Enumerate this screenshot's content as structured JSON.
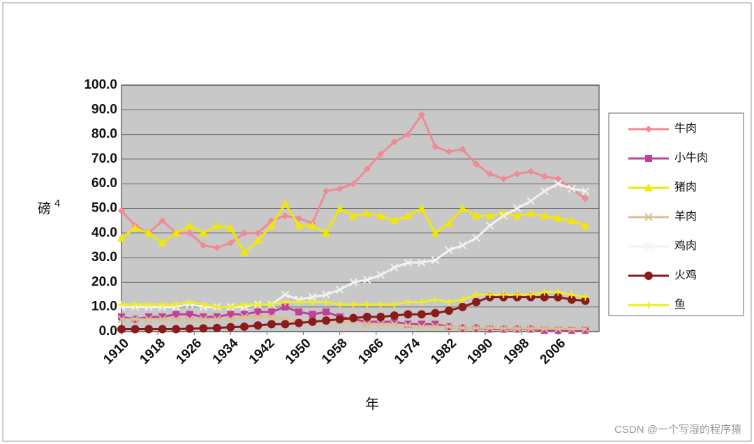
{
  "chart_data": {
    "type": "line",
    "ylabel": "磅",
    "ylabel_sup": "4",
    "xlabel": "年",
    "watermark": "CSDN @一个写湿的程序猿",
    "x": [
      1910,
      1913,
      1916,
      1919,
      1922,
      1925,
      1928,
      1931,
      1934,
      1937,
      1940,
      1943,
      1946,
      1949,
      1952,
      1955,
      1958,
      1961,
      1964,
      1967,
      1970,
      1973,
      1976,
      1979,
      1982,
      1985,
      1988,
      1991,
      1994,
      1997,
      2000,
      2003,
      2006,
      2009,
      2012
    ],
    "xlim": [
      1910,
      2015
    ],
    "xticks": [
      1910,
      1918,
      1926,
      1934,
      1942,
      1950,
      1958,
      1966,
      1974,
      1982,
      1990,
      1998,
      2006
    ],
    "ylim": [
      0,
      100
    ],
    "yticks": [
      {
        "value": 0,
        "label": "0.0"
      },
      {
        "value": 10,
        "label": "10.0"
      },
      {
        "value": 20,
        "label": "20.0"
      },
      {
        "value": 30,
        "label": "30.0"
      },
      {
        "value": 40,
        "label": "40.0"
      },
      {
        "value": 50,
        "label": "50.0"
      },
      {
        "value": 60,
        "label": "60.0"
      },
      {
        "value": 70,
        "label": "70.0"
      },
      {
        "value": 80,
        "label": "80.0"
      },
      {
        "value": 90,
        "label": "90.0"
      },
      {
        "value": 100,
        "label": "100.0"
      }
    ],
    "grid": true,
    "legend": "right",
    "series": [
      {
        "name": "牛肉",
        "color": "#f08a94",
        "marker": "diamond",
        "values": [
          49,
          43,
          40,
          45,
          40,
          40,
          35,
          34,
          36,
          40,
          40,
          45,
          47,
          46,
          44,
          57,
          58,
          60,
          66,
          72,
          77,
          80,
          88,
          75,
          73,
          74,
          68,
          64,
          62,
          64,
          65,
          63,
          62,
          58,
          54
        ]
      },
      {
        "name": "小牛肉",
        "color": "#c0409a",
        "marker": "square",
        "values": [
          6,
          5,
          6,
          6,
          7,
          7,
          6,
          6,
          7,
          7,
          8,
          8,
          10,
          8,
          7,
          8,
          6,
          5,
          4,
          4,
          4,
          3,
          3,
          3,
          2,
          1.5,
          1.5,
          1,
          1,
          1,
          1,
          0.5,
          0.5,
          0.5,
          0.5
        ]
      },
      {
        "name": "猪肉",
        "color": "#f0e800",
        "marker": "triangle",
        "values": [
          38,
          42,
          40,
          36,
          40,
          43,
          40,
          43,
          42,
          32,
          37,
          43,
          52,
          43,
          43,
          40,
          50,
          47,
          48,
          47,
          45,
          47,
          50,
          40,
          44,
          50,
          47,
          47,
          48,
          47,
          48,
          47,
          46,
          45,
          43
        ]
      },
      {
        "name": "羊肉",
        "color": "#d8c090",
        "marker": "x",
        "values": [
          5,
          5,
          5,
          5,
          5,
          5,
          5,
          5,
          5,
          6,
          6,
          6,
          5,
          4,
          4,
          4,
          4,
          4,
          3,
          3,
          3,
          2.5,
          2,
          2,
          2,
          1.5,
          1.5,
          1.5,
          1.3,
          1.2,
          1.2,
          1.2,
          1.1,
          1,
          1
        ]
      },
      {
        "name": "鸡肉",
        "color": "#f2f2f2",
        "marker": "x",
        "values": [
          10,
          10,
          10,
          10,
          10,
          11,
          10,
          10,
          10,
          10,
          11,
          11,
          15,
          13,
          14,
          15,
          17,
          20,
          21,
          23,
          26,
          28,
          28,
          29,
          33,
          35,
          38,
          43,
          47,
          50,
          53,
          57,
          60,
          58,
          57
        ]
      },
      {
        "name": "火鸡",
        "color": "#8b1a1a",
        "marker": "circle",
        "values": [
          1,
          1,
          1,
          1,
          1,
          1.2,
          1.3,
          1.5,
          1.8,
          2,
          2.5,
          3,
          3,
          3.5,
          4,
          4.5,
          5,
          5.5,
          6,
          6,
          6.5,
          7,
          7,
          7.5,
          8.5,
          10,
          12,
          14,
          14,
          14,
          14,
          14,
          14,
          13,
          12.5
        ]
      },
      {
        "name": "鱼",
        "color": "#eeee20",
        "marker": "plus",
        "values": [
          11,
          11,
          11,
          11,
          11,
          12,
          11,
          10,
          10,
          11,
          11,
          11,
          12,
          12,
          12,
          12,
          11,
          11,
          11,
          11,
          11,
          12,
          12,
          13,
          12,
          13,
          15,
          15,
          15,
          15,
          15,
          16,
          16,
          15,
          14
        ]
      }
    ]
  }
}
